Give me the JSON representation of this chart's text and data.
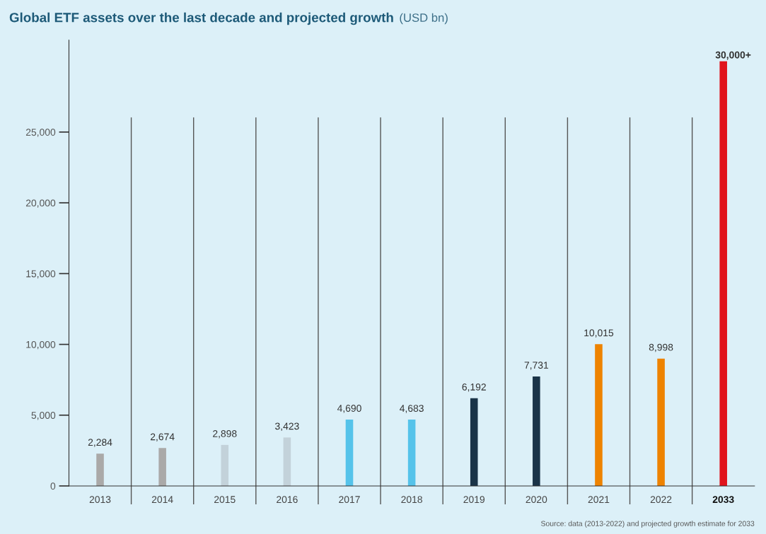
{
  "chart_data": {
    "type": "bar",
    "title": "Global ETF assets over the last decade and projected growth",
    "subtitle": "(USD bn)",
    "categories": [
      "2013",
      "2014",
      "2015",
      "2016",
      "2017",
      "2018",
      "2019",
      "2020",
      "2021",
      "2022",
      "2033"
    ],
    "values": [
      2284,
      2674,
      2898,
      3423,
      4690,
      4683,
      6192,
      7731,
      10015,
      8998,
      30000
    ],
    "colors": [
      "#aaa9a8",
      "#aaa9a8",
      "#c3d2da",
      "#c3d2da",
      "#55c3ea",
      "#55c3ea",
      "#1a3448",
      "#1a3448",
      "#ee8300",
      "#ee8300",
      "#e0141c"
    ],
    "value_labels": [
      "2,284",
      "2,674",
      "2,898",
      "3,423",
      "4,690",
      "4,683",
      "6,192",
      "7,731",
      "10,015",
      "8,998",
      "30,000+"
    ],
    "ylim": [
      0,
      31500
    ],
    "yticks": [
      {
        "value": 0,
        "label": "0"
      },
      {
        "value": 5000,
        "label": "5,000"
      },
      {
        "value": 10000,
        "label": "10,000"
      },
      {
        "value": 15000,
        "label": "15,000"
      },
      {
        "value": 20000,
        "label": "20,000"
      },
      {
        "value": 25000,
        "label": "25,000"
      }
    ],
    "grid": "x",
    "annotations": [
      "Source: data (2013-2022) and projected growth estimate for 2033"
    ]
  }
}
